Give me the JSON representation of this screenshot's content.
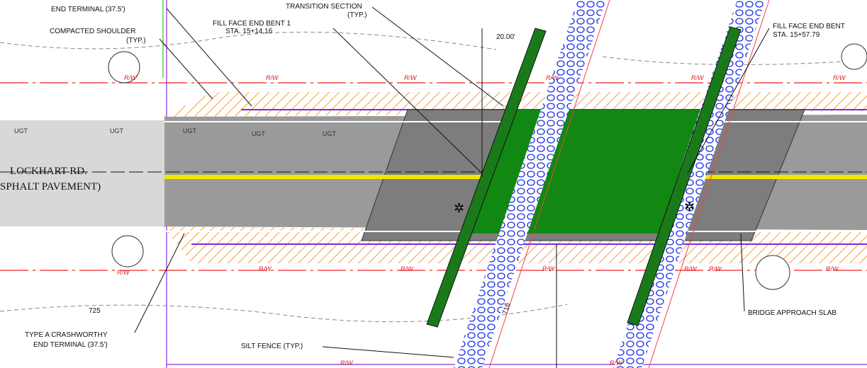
{
  "labels": {
    "end_terminal_top": "END TERMINAL (37.5')",
    "compacted_shoulder": [
      "COMPACTED SHOULDER",
      "(TYP.)"
    ],
    "transition_section": [
      "TRANSITION SECTION",
      "(TYP.)"
    ],
    "fill_face_1": [
      "FILL FACE END BENT 1",
      "STA. 15+14.16"
    ],
    "dimension": "20.00'",
    "fill_face_2": [
      "FILL FACE END BENT",
      "STA. 15+57.79"
    ],
    "road_name": "LOCKHART RD.",
    "pavement": "SPHALT PAVEMENT)",
    "contour_725": "725",
    "contour_716": "716",
    "end_terminal_bottom": [
      "TYPE A CRASHWORTHY",
      "END TERMINAL (37.5')"
    ],
    "silt_fence": "SILT FENCE (TYP.)",
    "approach_slab": "BRIDGE APPROACH SLAB",
    "rw": [
      "R/W",
      "R/W",
      "R/W",
      "R/W",
      "R/W",
      "R/W",
      "R/W",
      "R/W",
      "R/W",
      "R/W",
      "R/W",
      "R/W",
      "R/W",
      "R/W",
      "R/W"
    ],
    "ugt": [
      "UGT",
      "UGT",
      "UGT",
      "UGT",
      "UGT"
    ]
  }
}
